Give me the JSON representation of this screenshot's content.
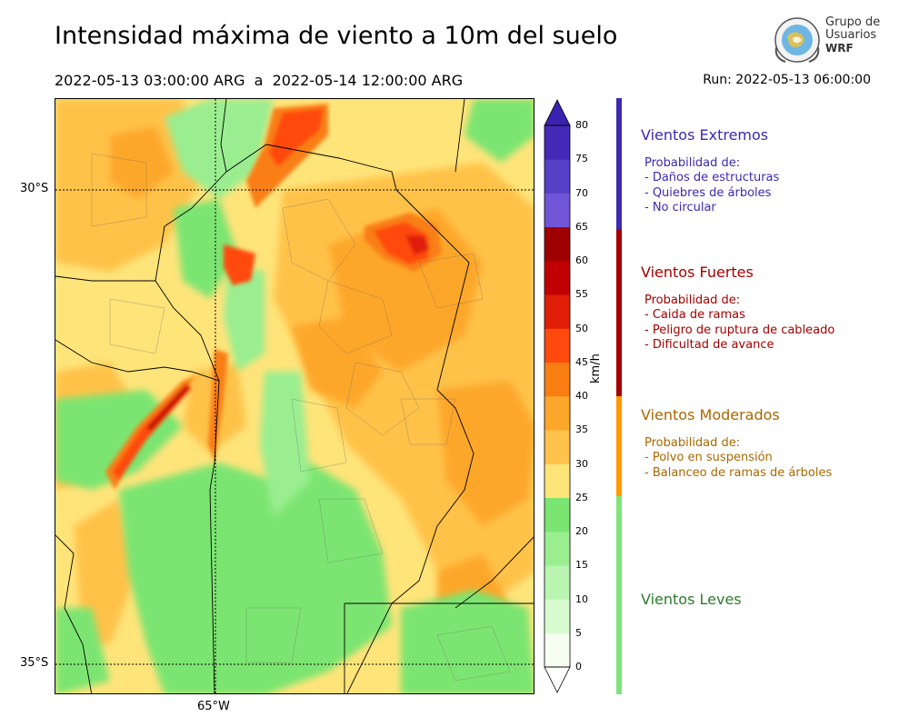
{
  "title": "Intensidad máxima de viento a 10m del suelo",
  "period": "2022-05-13 03:00:00 ARG  a  2022-05-14 12:00:00 ARG",
  "run": "Run: 2022-05-13 06:00:00",
  "logo": {
    "line1": "Grupo de",
    "line2": "Usuarios",
    "line3": "WRF"
  },
  "map": {
    "lat_labels": [
      "30°S",
      "35°S"
    ],
    "lon_labels": [
      "65°W"
    ]
  },
  "colorbar": {
    "unit": "km/h",
    "ticks": [
      "80",
      "75",
      "70",
      "65",
      "60",
      "55",
      "50",
      "45",
      "40",
      "35",
      "30",
      "25",
      "20",
      "15",
      "10",
      "5",
      "0"
    ],
    "colors": [
      "#f5fef0",
      "#d8fcd0",
      "#b9f5b0",
      "#9aee90",
      "#7be571",
      "#ffe47a",
      "#ffc24a",
      "#fda72b",
      "#f97e12",
      "#ff4a0d",
      "#e01e08",
      "#c00003",
      "#9e0000",
      "#7055d8",
      "#5640c8",
      "#4428b8"
    ]
  },
  "categories": [
    {
      "title": "Vientos Extremos",
      "color": "#3a2ab0",
      "lines": [
        "Probabilidad de:",
        "- Daños de estructuras",
        "- Quiebres de árboles",
        "- No circular"
      ]
    },
    {
      "title": "Vientos Fuertes",
      "color": "#a40000",
      "lines": [
        "Probabilidad de:",
        "- Caida de ramas",
        "- Peligro de ruptura de cableado",
        "- Dificultad de avance"
      ]
    },
    {
      "title": "Vientos Moderados",
      "color": "#a86800",
      "lines": [
        "Probabilidad de:",
        "- Polvo en suspensión",
        "- Balanceo de ramas de árboles"
      ]
    },
    {
      "title": "Vientos Leves",
      "color": "#2e7a2e",
      "lines": []
    }
  ]
}
